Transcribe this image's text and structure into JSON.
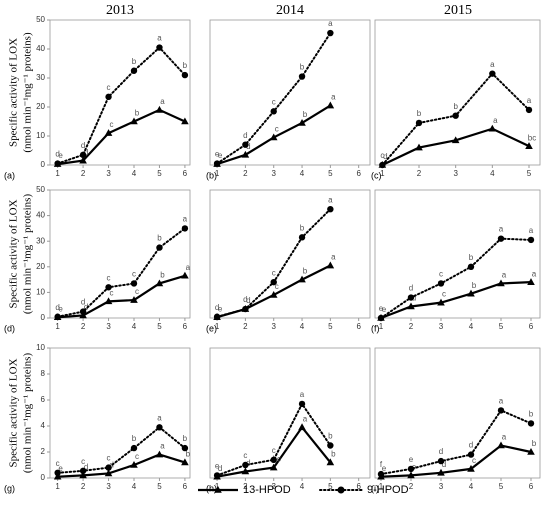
{
  "column_titles": [
    "2013",
    "2014",
    "2015"
  ],
  "y_label": [
    "Specific activity of LOX",
    "(nmol min⁻¹mg⁻¹ proteins)"
  ],
  "chart_data": [
    {
      "type": "line",
      "panel_label": "(a)",
      "x": [
        1,
        2,
        3,
        4,
        5,
        6
      ],
      "xlim": [
        0.7,
        6.2
      ],
      "xticks": [
        1,
        2,
        3,
        4,
        5,
        6
      ],
      "ylim": [
        0,
        50
      ],
      "yticks": [
        0,
        10,
        20,
        30,
        40,
        50
      ],
      "series": [
        {
          "name": "13-HPOD",
          "color": "#000000",
          "line_style": "solid",
          "marker": "triangle",
          "values": [
            0.3,
            1.5,
            11,
            15,
            19,
            15
          ],
          "point_labels": [
            "e",
            "d",
            "c",
            "b",
            "a",
            null
          ]
        },
        {
          "name": "9-HPOD",
          "color": "#000000",
          "line_style": "dotted",
          "marker": "circle",
          "values": [
            0.5,
            3.5,
            23.5,
            32.5,
            40.5,
            31
          ],
          "point_labels": [
            "d",
            "d",
            "c",
            "b",
            "a",
            "b"
          ]
        }
      ]
    },
    {
      "type": "line",
      "panel_label": "(b)",
      "x": [
        1,
        2,
        3,
        4,
        5
      ],
      "xlim": [
        0.75,
        6.4
      ],
      "xticks": [
        1,
        2,
        3,
        4,
        5,
        6
      ],
      "ylim": [
        0,
        50
      ],
      "series": [
        {
          "name": "13-HPOD",
          "color": "#000000",
          "line_style": "solid",
          "marker": "triangle",
          "values": [
            0.3,
            3.5,
            9.5,
            14.5,
            20.5
          ],
          "point_labels": [
            "e",
            "d",
            "c",
            "b",
            "a"
          ]
        },
        {
          "name": "9-HPOD",
          "color": "#000000",
          "line_style": "dotted",
          "marker": "circle",
          "values": [
            0.5,
            7,
            18.5,
            30.5,
            45.5
          ],
          "point_labels": [
            "e",
            "d",
            "c",
            "b",
            "a"
          ]
        }
      ]
    },
    {
      "type": "line",
      "panel_label": "(c)",
      "x": [
        1,
        2,
        3,
        4,
        5
      ],
      "xlim": [
        0.8,
        5.3
      ],
      "xticks": [
        1,
        2,
        3,
        4,
        5
      ],
      "ylim": [
        0,
        50
      ],
      "series": [
        {
          "name": "13-HPOD",
          "color": "#000000",
          "line_style": "solid",
          "marker": "triangle",
          "values": [
            0,
            6,
            8.5,
            12.5,
            6.5
          ],
          "point_labels": [
            "d",
            null,
            null,
            "a",
            "bc"
          ]
        },
        {
          "name": "9-HPOD",
          "color": "#000000",
          "line_style": "dotted",
          "marker": "circle",
          "values": [
            0,
            14.5,
            17,
            31.5,
            19
          ],
          "point_labels": [
            "c",
            "b",
            "b",
            "a",
            "a"
          ]
        }
      ]
    },
    {
      "type": "line",
      "panel_label": "(d)",
      "x": [
        1,
        2,
        3,
        4,
        5,
        6
      ],
      "xlim": [
        0.7,
        6.2
      ],
      "xticks": [
        1,
        2,
        3,
        4,
        5,
        6
      ],
      "ylim": [
        0,
        50
      ],
      "yticks": [
        0,
        10,
        20,
        30,
        40,
        50
      ],
      "series": [
        {
          "name": "13-HPOD",
          "color": "#000000",
          "line_style": "solid",
          "marker": "triangle",
          "values": [
            0.3,
            1,
            6.5,
            7,
            13.5,
            16.5
          ],
          "point_labels": [
            "e",
            "d",
            "c",
            "c",
            "b",
            "a"
          ]
        },
        {
          "name": "9-HPOD",
          "color": "#000000",
          "line_style": "dotted",
          "marker": "circle",
          "values": [
            0.5,
            2.5,
            12,
            13.5,
            27.5,
            35
          ],
          "point_labels": [
            "d",
            "d",
            "c",
            "c",
            "b",
            "a"
          ]
        }
      ]
    },
    {
      "type": "line",
      "panel_label": "(e)",
      "x": [
        1,
        2,
        3,
        4,
        5
      ],
      "xlim": [
        0.75,
        6.4
      ],
      "xticks": [
        1,
        2,
        3,
        4,
        5,
        6
      ],
      "ylim": [
        0,
        50
      ],
      "series": [
        {
          "name": "13-HPOD",
          "color": "#000000",
          "line_style": "solid",
          "marker": "triangle",
          "values": [
            0.3,
            3.5,
            9,
            15,
            20.5
          ],
          "point_labels": [
            "e",
            "d",
            "c",
            "b",
            "a"
          ]
        },
        {
          "name": "9-HPOD",
          "color": "#000000",
          "line_style": "dotted",
          "marker": "circle",
          "values": [
            0.5,
            3.5,
            14,
            31.5,
            42.5
          ],
          "point_labels": [
            "d",
            "d",
            "c",
            "b",
            "a"
          ]
        }
      ]
    },
    {
      "type": "line",
      "panel_label": "(f)",
      "x": [
        1,
        2,
        3,
        4,
        5,
        6
      ],
      "xlim": [
        0.8,
        6.3
      ],
      "xticks": [
        1,
        2,
        3,
        4,
        5,
        6
      ],
      "ylim": [
        0,
        50
      ],
      "series": [
        {
          "name": "13-HPOD",
          "color": "#000000",
          "line_style": "solid",
          "marker": "triangle",
          "values": [
            0,
            4.5,
            6,
            9.5,
            13.5,
            14
          ],
          "point_labels": [
            "e",
            "d",
            "c",
            "b",
            "a",
            "a"
          ]
        },
        {
          "name": "9-HPOD",
          "color": "#000000",
          "line_style": "dotted",
          "marker": "circle",
          "values": [
            0,
            8,
            13.5,
            20,
            31,
            30.5
          ],
          "point_labels": [
            "e",
            "d",
            "c",
            "b",
            "a",
            "a"
          ]
        }
      ]
    },
    {
      "type": "line",
      "panel_label": "(g)",
      "x": [
        1,
        2,
        3,
        4,
        5,
        6
      ],
      "xlim": [
        0.7,
        6.2
      ],
      "xticks": [
        1,
        2,
        3,
        4,
        5,
        6
      ],
      "ylim": [
        0,
        10
      ],
      "yticks": [
        0,
        2,
        4,
        6,
        8,
        10
      ],
      "series": [
        {
          "name": "13-HPOD",
          "color": "#000000",
          "line_style": "solid",
          "marker": "triangle",
          "values": [
            0.1,
            0.2,
            0.35,
            1,
            1.8,
            1.2
          ],
          "point_labels": [
            "e",
            "d",
            "d",
            "c",
            "a",
            "b"
          ]
        },
        {
          "name": "9-HPOD",
          "color": "#000000",
          "line_style": "dotted",
          "marker": "circle",
          "values": [
            0.4,
            0.55,
            0.8,
            2.3,
            3.9,
            2.3
          ],
          "point_labels": [
            "c",
            "c",
            "c",
            "b",
            "a",
            "b"
          ]
        }
      ]
    },
    {
      "type": "line",
      "panel_label": "(h)",
      "x": [
        1,
        2,
        3,
        4,
        5
      ],
      "xlim": [
        0.75,
        6.4
      ],
      "xticks": [
        1,
        2,
        3,
        4,
        5,
        6
      ],
      "ylim": [
        0,
        10
      ],
      "series": [
        {
          "name": "13-HPOD",
          "color": "#000000",
          "line_style": "solid",
          "marker": "triangle",
          "values": [
            0.1,
            0.5,
            0.8,
            3.9,
            1.2
          ],
          "point_labels": [
            "d",
            "d",
            "bc",
            "a",
            "b"
          ]
        },
        {
          "name": "9-HPOD",
          "color": "#000000",
          "line_style": "dotted",
          "marker": "circle",
          "values": [
            0.2,
            1,
            1.4,
            5.7,
            2.5
          ],
          "point_labels": [
            "e",
            "c",
            "c",
            "a",
            "b"
          ]
        }
      ]
    },
    {
      "type": "line",
      "panel_label": "(i)",
      "x": [
        1,
        2,
        3,
        4,
        5,
        6
      ],
      "xlim": [
        0.8,
        6.3
      ],
      "xticks": [
        1,
        2,
        3,
        4,
        5,
        6
      ],
      "ylim": [
        0,
        10
      ],
      "series": [
        {
          "name": "13-HPOD",
          "color": "#000000",
          "line_style": "solid",
          "marker": "triangle",
          "values": [
            0.1,
            0.2,
            0.4,
            0.7,
            2.5,
            2
          ],
          "point_labels": [
            "e",
            "e",
            "d",
            "c",
            "a",
            "b"
          ]
        },
        {
          "name": "9-HPOD",
          "color": "#000000",
          "line_style": "dotted",
          "marker": "circle",
          "values": [
            0.3,
            0.7,
            1.3,
            1.8,
            5.2,
            4.2
          ],
          "point_labels": [
            "f",
            "e",
            "d",
            "d",
            "a",
            "b"
          ]
        }
      ]
    }
  ]
}
